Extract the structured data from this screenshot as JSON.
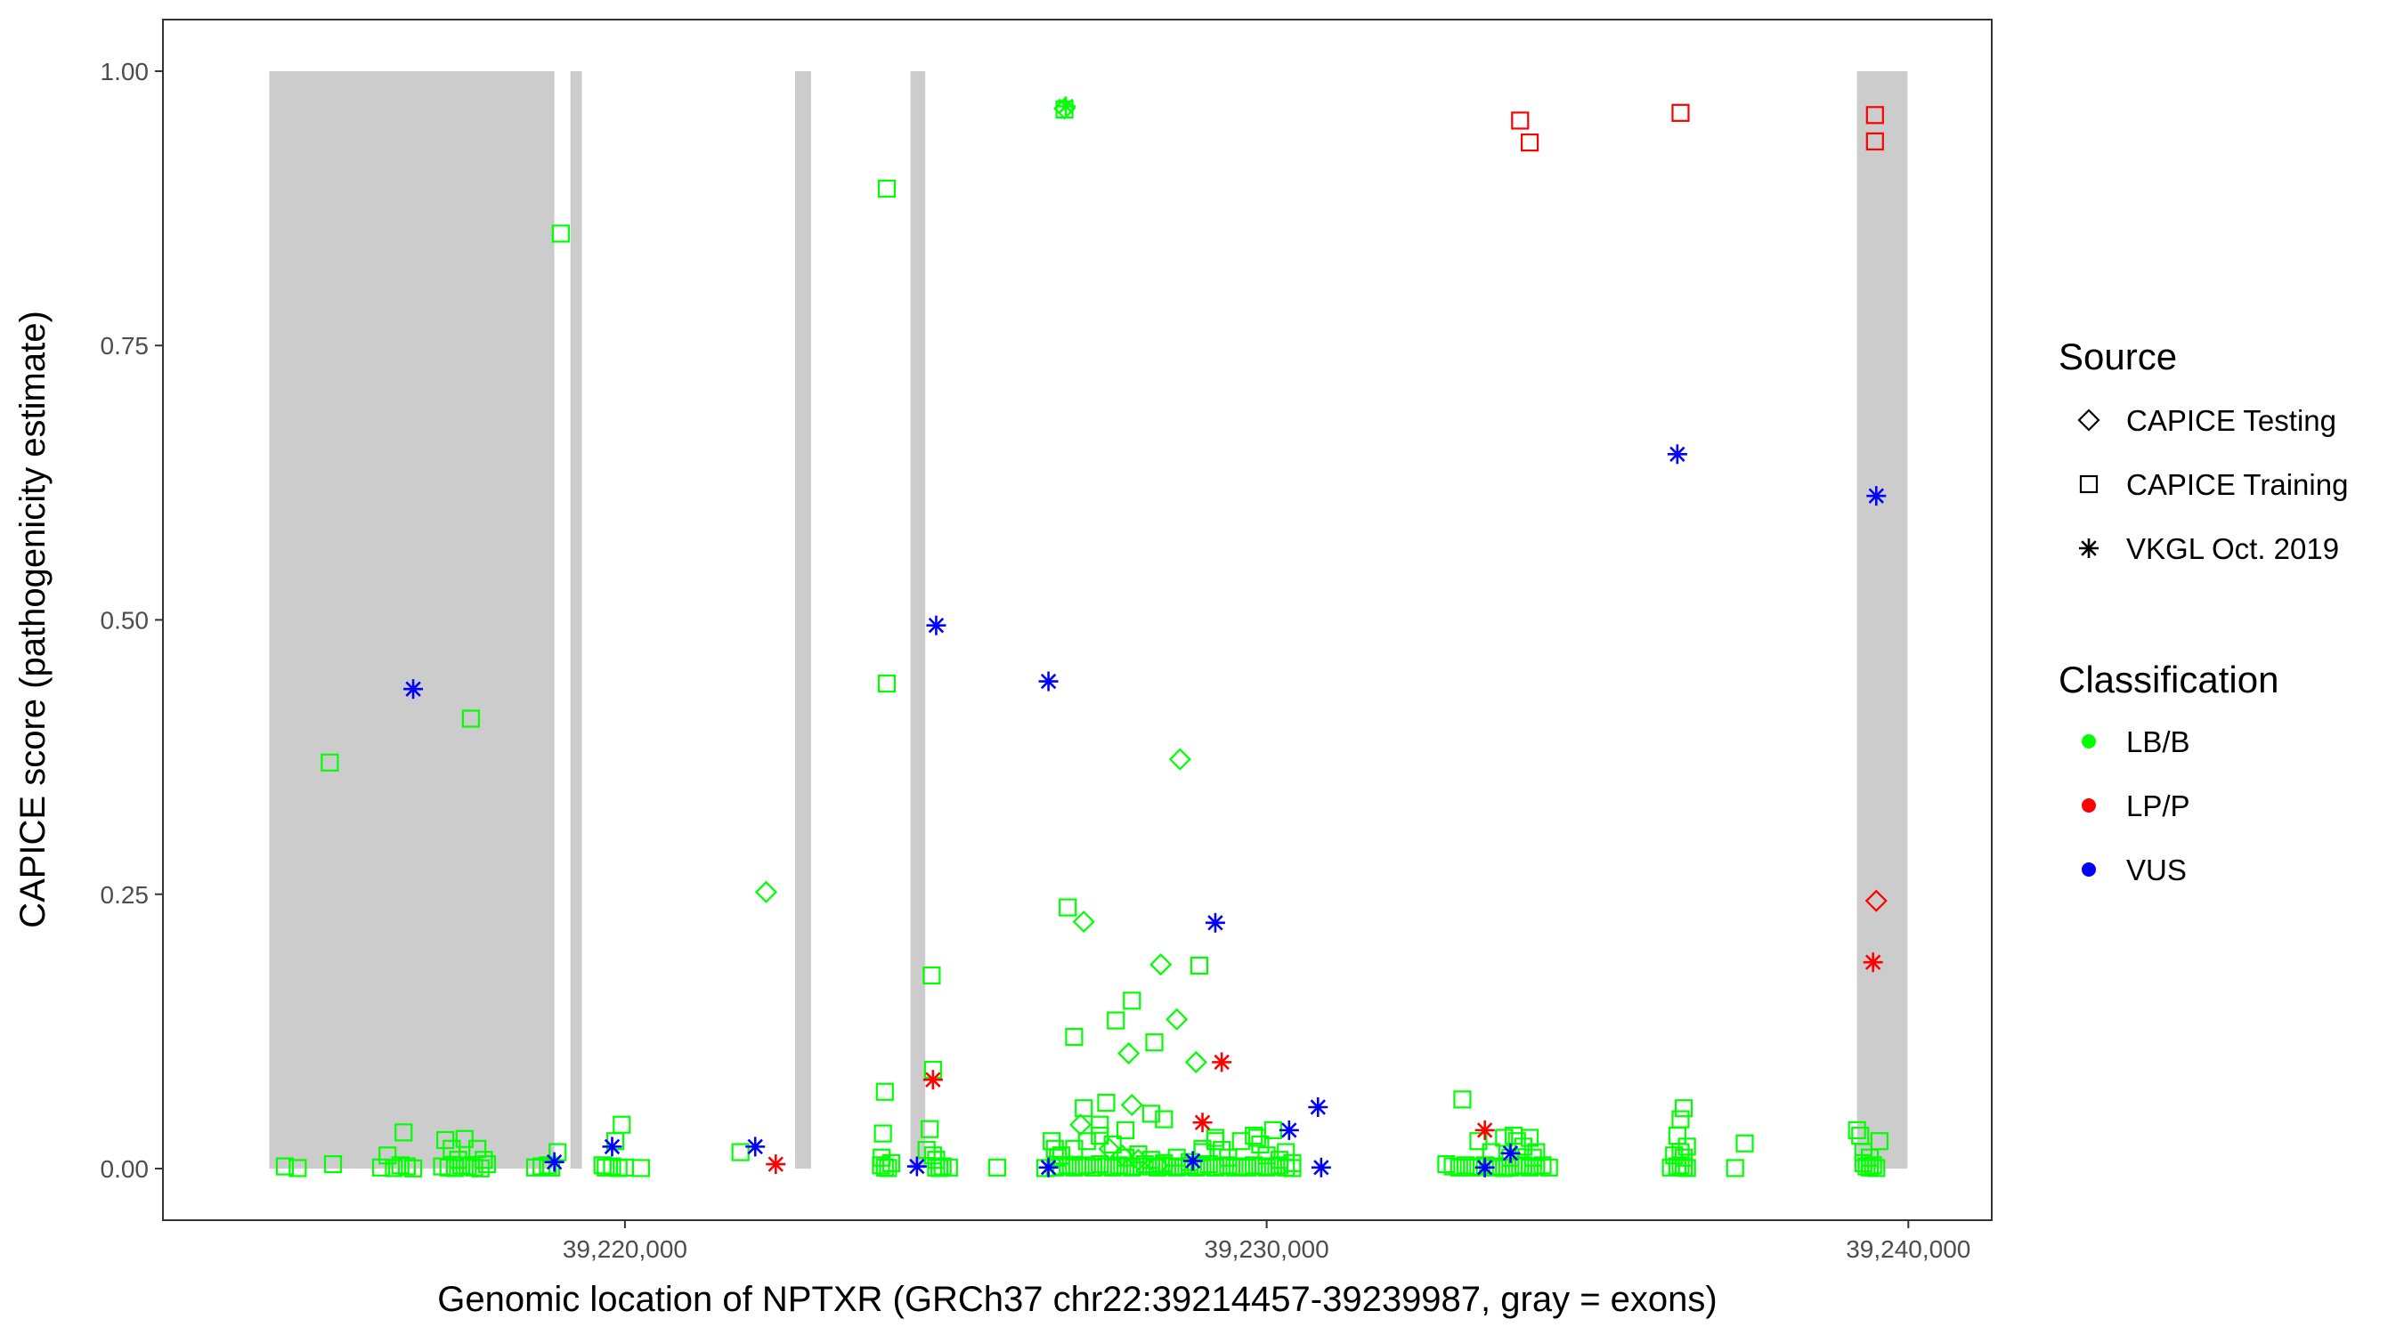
{
  "chart_data": {
    "type": "scatter",
    "xlabel": "Genomic location of NPTXR (GRCh37 chr22:39214457-39239987, gray = exons)",
    "ylabel": "CAPICE score (pathogenicity estimate)",
    "xlim": [
      39212800,
      39241300
    ],
    "ylim": [
      -0.047,
      1.047
    ],
    "x_ticks": [
      39220000,
      39230000,
      39240000
    ],
    "x_tick_labels": [
      "39,220,000",
      "39,230,000",
      "39,240,000"
    ],
    "y_ticks": [
      0,
      0.25,
      0.5,
      0.75,
      1.0
    ],
    "y_tick_labels": [
      "0.00",
      "0.25",
      "0.50",
      "0.75",
      "1.00"
    ],
    "grid": false,
    "exons": [
      [
        39214457,
        39218900
      ],
      [
        39219150,
        39219330
      ],
      [
        39222650,
        39222900
      ],
      [
        39224450,
        39224680
      ],
      [
        39239200,
        39239987
      ]
    ],
    "exon_color": "#cccccc",
    "legend": {
      "placement": "right",
      "source_title": "Source",
      "source_items": [
        {
          "key": "testing",
          "label": "CAPICE Testing",
          "shape": "diamond"
        },
        {
          "key": "training",
          "label": "CAPICE Training",
          "shape": "square"
        },
        {
          "key": "vkgl",
          "label": "VKGL Oct. 2019",
          "shape": "asterisk"
        }
      ],
      "class_title": "Classification",
      "class_items": [
        {
          "key": "LB/B",
          "label": "LB/B",
          "color": "#00ff00"
        },
        {
          "key": "LP/P",
          "label": "LP/P",
          "color": "#ff0000"
        },
        {
          "key": "VUS",
          "label": "VUS",
          "color": "#0000ff"
        }
      ]
    },
    "series": [
      {
        "source": "training",
        "class": "LB/B",
        "points": [
          [
            39214700,
            0.002
          ],
          [
            39214900,
            0.0005
          ],
          [
            39215400,
            0.37
          ],
          [
            39215450,
            0.004
          ],
          [
            39216300,
            0.012
          ],
          [
            39216200,
            0.001
          ],
          [
            39216400,
            0.0005
          ],
          [
            39216500,
            0.003
          ],
          [
            39216600,
            0.002
          ],
          [
            39216700,
            0.0002
          ],
          [
            39216550,
            0.033
          ],
          [
            39217200,
            0.026
          ],
          [
            39217300,
            0.018
          ],
          [
            39217400,
            0.008
          ],
          [
            39217150,
            0.002
          ],
          [
            39217250,
            0.001
          ],
          [
            39217350,
            0.0005
          ],
          [
            39217450,
            0.003
          ],
          [
            39217550,
            0.002
          ],
          [
            39217650,
            0.001
          ],
          [
            39217750,
            0.0002
          ],
          [
            39217850,
            0.004
          ],
          [
            39217500,
            0.027
          ],
          [
            39217600,
            0.41
          ],
          [
            39217700,
            0.018
          ],
          [
            39217800,
            0.008
          ],
          [
            39218600,
            0.001
          ],
          [
            39218700,
            0.002
          ],
          [
            39218800,
            0.003
          ],
          [
            39218850,
            0.001
          ],
          [
            39218950,
            0.015
          ],
          [
            39219000,
            0.852
          ],
          [
            39219650,
            0.003
          ],
          [
            39219800,
            0.002
          ],
          [
            39219900,
            0.0005
          ],
          [
            39220000,
            0.001
          ],
          [
            39219850,
            0.025
          ],
          [
            39219950,
            0.04
          ],
          [
            39219700,
            0.001
          ],
          [
            39220250,
            0.0005
          ],
          [
            39221800,
            0.015
          ],
          [
            39223990,
            0.003
          ],
          [
            39224050,
            0.001
          ],
          [
            39224100,
            0.0005
          ],
          [
            39224150,
            0.005
          ],
          [
            39224000,
            0.01
          ],
          [
            39224020,
            0.032
          ],
          [
            39224050,
            0.07
          ],
          [
            39224080,
            0.442
          ],
          [
            39224080,
            0.893
          ],
          [
            39224750,
            0.036
          ],
          [
            39224780,
            0.176
          ],
          [
            39224800,
            0.09
          ],
          [
            39224850,
            0.001
          ],
          [
            39224900,
            0.0005
          ],
          [
            39224950,
            0.002
          ],
          [
            39225050,
            0.001
          ],
          [
            39224700,
            0.017
          ],
          [
            39224800,
            0.012
          ],
          [
            39224850,
            0.008
          ],
          [
            39225800,
            0.001
          ],
          [
            39226550,
            0.0005
          ],
          [
            39226700,
            0.001
          ],
          [
            39226800,
            0.002
          ],
          [
            39226900,
            0.003
          ],
          [
            39227000,
            0.001
          ],
          [
            39227100,
            0.002
          ],
          [
            39227200,
            0.003
          ],
          [
            39227300,
            0.001
          ],
          [
            39227400,
            0.004
          ],
          [
            39227500,
            0.002
          ],
          [
            39227600,
            0.001
          ],
          [
            39227700,
            0.003
          ],
          [
            39227800,
            0.002
          ],
          [
            39227900,
            0.001
          ],
          [
            39228000,
            0.002
          ],
          [
            39228100,
            0.004
          ],
          [
            39228200,
            0.002
          ],
          [
            39228300,
            0.001
          ],
          [
            39228400,
            0.003
          ],
          [
            39228500,
            0.002
          ],
          [
            39228600,
            0.001
          ],
          [
            39228700,
            0.002
          ],
          [
            39228800,
            0.003
          ],
          [
            39228900,
            0.001
          ],
          [
            39229000,
            0.002
          ],
          [
            39229100,
            0.004
          ],
          [
            39229200,
            0.001
          ],
          [
            39229300,
            0.002
          ],
          [
            39229400,
            0.003
          ],
          [
            39229500,
            0.001
          ],
          [
            39229600,
            0.002
          ],
          [
            39229700,
            0.001
          ],
          [
            39229800,
            0.003
          ],
          [
            39229900,
            0.002
          ],
          [
            39230000,
            0.001
          ],
          [
            39230100,
            0.002
          ],
          [
            39230200,
            0.003
          ],
          [
            39230300,
            0.001
          ],
          [
            39230400,
            0.0005
          ],
          [
            39226800,
            0.012
          ],
          [
            39227000,
            0.018
          ],
          [
            39227200,
            0.025
          ],
          [
            39227400,
            0.03
          ],
          [
            39227600,
            0.022
          ],
          [
            39227800,
            0.01
          ],
          [
            39228000,
            0.013
          ],
          [
            39228200,
            0.008
          ],
          [
            39228400,
            0.005
          ],
          [
            39228600,
            0.01
          ],
          [
            39228800,
            0.006
          ],
          [
            39229000,
            0.018
          ],
          [
            39229200,
            0.025
          ],
          [
            39229400,
            0.01
          ],
          [
            39229600,
            0.025
          ],
          [
            39229800,
            0.03
          ],
          [
            39230000,
            0.012
          ],
          [
            39230200,
            0.008
          ],
          [
            39230400,
            0.005
          ],
          [
            39227150,
            0.055
          ],
          [
            39227400,
            0.04
          ],
          [
            39227500,
            0.06
          ],
          [
            39227800,
            0.035
          ],
          [
            39228200,
            0.05
          ],
          [
            39228400,
            0.045
          ],
          [
            39229000,
            0.015
          ],
          [
            39227000,
            0.12
          ],
          [
            39226900,
            0.238
          ],
          [
            39227650,
            0.135
          ],
          [
            39227900,
            0.153
          ],
          [
            39228250,
            0.115
          ],
          [
            39228950,
            0.185
          ],
          [
            39229200,
            0.028
          ],
          [
            39229300,
            0.017
          ],
          [
            39229850,
            0.028
          ],
          [
            39229900,
            0.022
          ],
          [
            39230100,
            0.035
          ],
          [
            39230300,
            0.015
          ],
          [
            39226850,
            0.965
          ],
          [
            39226650,
            0.025
          ],
          [
            39226700,
            0.018
          ],
          [
            39226750,
            0.01
          ],
          [
            39232800,
            0.004
          ],
          [
            39232900,
            0.002
          ],
          [
            39233000,
            0.001
          ],
          [
            39233100,
            0.003
          ],
          [
            39233200,
            0.001
          ],
          [
            39233300,
            0.002
          ],
          [
            39233400,
            0.003
          ],
          [
            39233500,
            0.001
          ],
          [
            39233600,
            0.002
          ],
          [
            39233700,
            0.0005
          ],
          [
            39233800,
            0.001
          ],
          [
            39233900,
            0.002
          ],
          [
            39234000,
            0.003
          ],
          [
            39234100,
            0.001
          ],
          [
            39234200,
            0.002
          ],
          [
            39234300,
            0.003
          ],
          [
            39234400,
            0.001
          ],
          [
            39233050,
            0.063
          ],
          [
            39233300,
            0.025
          ],
          [
            39233500,
            0.015
          ],
          [
            39233700,
            0.028
          ],
          [
            39233800,
            0.01
          ],
          [
            39233850,
            0.03
          ],
          [
            39234000,
            0.02
          ],
          [
            39234100,
            0.028
          ],
          [
            39234200,
            0.015
          ],
          [
            39234150,
            0.01
          ],
          [
            39233900,
            0.025
          ],
          [
            39236300,
            0.001
          ],
          [
            39236400,
            0.002
          ],
          [
            39236450,
            0.003
          ],
          [
            39236500,
            0.001
          ],
          [
            39236550,
            0.0005
          ],
          [
            39236350,
            0.012
          ],
          [
            39236400,
            0.03
          ],
          [
            39236450,
            0.045
          ],
          [
            39236500,
            0.055
          ],
          [
            39236550,
            0.02
          ],
          [
            39236500,
            0.01
          ],
          [
            39236450,
            0.015
          ],
          [
            39237300,
            0.0005
          ],
          [
            39237450,
            0.023
          ],
          [
            39239200,
            0.035
          ],
          [
            39239250,
            0.03
          ],
          [
            39239300,
            0.015
          ],
          [
            39239350,
            0.002
          ],
          [
            39239400,
            0.001
          ],
          [
            39239450,
            0.003
          ],
          [
            39239500,
            0.0005
          ],
          [
            39239550,
            0.025
          ],
          [
            39239400,
            0.01
          ],
          [
            39239300,
            0.005
          ]
        ]
      },
      {
        "source": "training",
        "class": "LP/P",
        "points": [
          [
            39233950,
            0.955
          ],
          [
            39234100,
            0.935
          ],
          [
            39236450,
            0.962
          ],
          [
            39239480,
            0.96
          ],
          [
            39239480,
            0.936
          ]
        ]
      },
      {
        "source": "testing",
        "class": "LB/B",
        "points": [
          [
            39222200,
            0.252
          ],
          [
            39227150,
            0.225
          ],
          [
            39228650,
            0.373
          ],
          [
            39228350,
            0.186
          ],
          [
            39228600,
            0.136
          ],
          [
            39228900,
            0.097
          ],
          [
            39227850,
            0.105
          ],
          [
            39227900,
            0.058
          ],
          [
            39227100,
            0.04
          ],
          [
            39227550,
            0.018
          ],
          [
            39227750,
            0.012
          ],
          [
            39228000,
            0.008
          ],
          [
            39228300,
            0.003
          ],
          [
            39226850,
            0.966
          ]
        ]
      },
      {
        "source": "testing",
        "class": "LP/P",
        "points": [
          [
            39239500,
            0.244
          ]
        ]
      },
      {
        "source": "vkgl",
        "class": "LB/B",
        "points": [
          [
            39226870,
            0.968
          ]
        ]
      },
      {
        "source": "vkgl",
        "class": "LP/P",
        "points": [
          [
            39222350,
            0.004
          ],
          [
            39224800,
            0.081
          ],
          [
            39229300,
            0.097
          ],
          [
            39229000,
            0.042
          ],
          [
            39233400,
            0.035
          ],
          [
            39239450,
            0.188
          ]
        ]
      },
      {
        "source": "vkgl",
        "class": "VUS",
        "points": [
          [
            39216700,
            0.437
          ],
          [
            39218900,
            0.006
          ],
          [
            39219800,
            0.02
          ],
          [
            39222030,
            0.02
          ],
          [
            39224550,
            0.002
          ],
          [
            39224850,
            0.495
          ],
          [
            39226600,
            0.444
          ],
          [
            39226600,
            0.001
          ],
          [
            39228850,
            0.007
          ],
          [
            39229200,
            0.224
          ],
          [
            39230350,
            0.035
          ],
          [
            39230800,
            0.056
          ],
          [
            39230850,
            0.001
          ],
          [
            39233400,
            0.001
          ],
          [
            39233800,
            0.014
          ],
          [
            39236400,
            0.651
          ],
          [
            39239500,
            0.613
          ]
        ]
      }
    ]
  }
}
